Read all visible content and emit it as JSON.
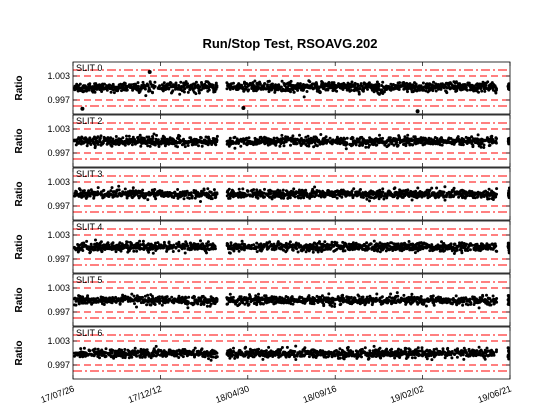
{
  "figure": {
    "title": "Run/Stop Test, RSOAVG.202",
    "ylabel": "Ratio"
  },
  "chart_data": {
    "type": "scatter",
    "title": "Run/Stop Test, RSOAVG.202",
    "ylabel": "Ratio",
    "xlim": [
      "17/07/26",
      "19/06/21"
    ],
    "x_ticks": [
      "17/07/26",
      "17/12/12",
      "18/04/30",
      "18/09/16",
      "19/02/02",
      "19/06/21"
    ],
    "ylim": [
      0.9935,
      1.0065
    ],
    "y_ticks": [
      1.003,
      0.997
    ],
    "y_tick_labels": [
      "1.003",
      "0.997"
    ],
    "reference_lines": {
      "red_dashed": [
        1.003,
        0.997
      ],
      "red_dashdot": [
        1.0045,
        0.9955
      ]
    },
    "colors": {
      "points": "#000000",
      "reference": "#ff0000"
    },
    "panels": [
      {
        "label": "SLIT 0",
        "center": 1.0002,
        "spread": 0.0011,
        "gaps": [
          [
            "18/03/12",
            "18/03/27"
          ],
          [
            "19/05/30",
            "19/06/18"
          ]
        ],
        "outliers": [
          {
            "x": "17/08/10",
            "y": 0.9948
          },
          {
            "x": "18/04/23",
            "y": 0.995
          },
          {
            "x": "19/01/25",
            "y": 0.9942
          },
          {
            "x": "17/11/25",
            "y": 1.004
          }
        ]
      },
      {
        "label": "SLIT 2",
        "center": 0.9999,
        "spread": 0.001,
        "gaps": [
          [
            "18/03/12",
            "18/03/27"
          ],
          [
            "19/05/30",
            "19/06/18"
          ]
        ],
        "outliers": []
      },
      {
        "label": "SLIT 3",
        "center": 1.0,
        "spread": 0.001,
        "gaps": [
          [
            "18/03/12",
            "18/03/27"
          ],
          [
            "19/05/30",
            "19/06/18"
          ]
        ],
        "outliers": []
      },
      {
        "label": "SLIT 4",
        "center": 1.0,
        "spread": 0.001,
        "gaps": [
          [
            "18/03/12",
            "18/03/27"
          ],
          [
            "19/05/30",
            "19/06/18"
          ]
        ],
        "outliers": []
      },
      {
        "label": "SLIT 5",
        "center": 0.9999,
        "spread": 0.001,
        "gaps": [
          [
            "18/03/12",
            "18/03/27"
          ],
          [
            "19/05/30",
            "19/06/18"
          ]
        ],
        "outliers": []
      },
      {
        "label": "SLIT 6",
        "center": 0.9999,
        "spread": 0.001,
        "gaps": [
          [
            "18/03/12",
            "18/03/27"
          ],
          [
            "19/05/30",
            "19/06/18"
          ]
        ],
        "outliers": []
      }
    ]
  }
}
